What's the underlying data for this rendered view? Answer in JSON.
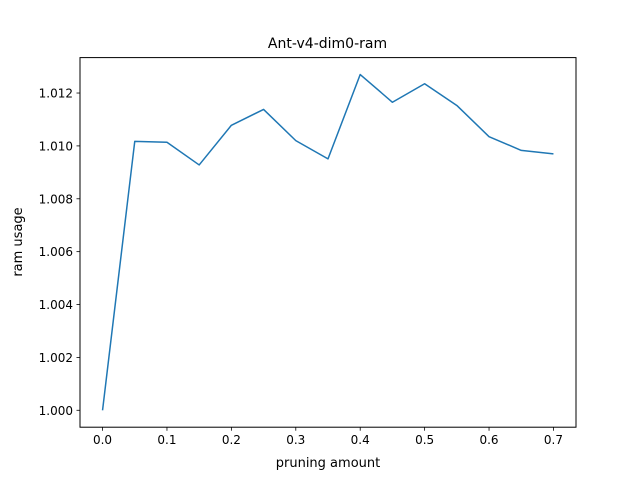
{
  "chart_data": {
    "type": "line",
    "title": "Ant-v4-dim0-ram",
    "xlabel": "pruning amount",
    "ylabel": "ram usage",
    "xlim": [
      -0.035,
      0.735
    ],
    "ylim": [
      0.99936,
      1.01334
    ],
    "grid": false,
    "x_ticks": [
      0.0,
      0.1,
      0.2,
      0.3,
      0.4,
      0.5,
      0.6,
      0.7
    ],
    "x_tick_labels": [
      "0.0",
      "0.1",
      "0.2",
      "0.3",
      "0.4",
      "0.5",
      "0.6",
      "0.7"
    ],
    "y_ticks": [
      1.0,
      1.002,
      1.004,
      1.006,
      1.008,
      1.01,
      1.012
    ],
    "y_tick_labels": [
      "1.000",
      "1.002",
      "1.004",
      "1.006",
      "1.008",
      "1.010",
      "1.012"
    ],
    "series": [
      {
        "color": "#1f77b4",
        "x": [
          0.0,
          0.05,
          0.1,
          0.15,
          0.2,
          0.25,
          0.3,
          0.35,
          0.4,
          0.45,
          0.5,
          0.55,
          0.6,
          0.65,
          0.7
        ],
        "y": [
          1.0,
          1.01017,
          1.01014,
          1.00928,
          1.01078,
          1.01138,
          1.0102,
          1.00951,
          1.0127,
          1.01165,
          1.01235,
          1.01153,
          1.01035,
          1.00983,
          1.0097
        ]
      }
    ]
  }
}
